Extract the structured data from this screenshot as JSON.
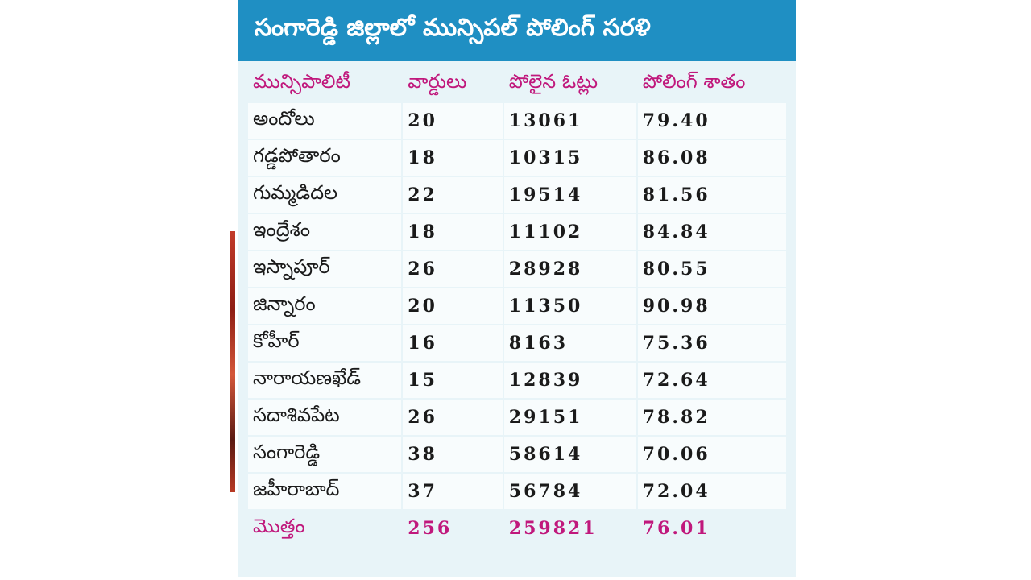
{
  "title": "సంగారెడ్డి జిల్లాలో మున్సిపల్ పోలింగ్ సరళి",
  "headers": [
    "మున్సిపాలిటీ",
    "వార్డులు",
    "పోలైన ఓట్లు",
    "పోలింగ్ శాతం"
  ],
  "rows": [
    {
      "name": "అందోలు",
      "wards": "20",
      "votes": "13061",
      "percent": "79.40"
    },
    {
      "name": "గడ్డపోతారం",
      "wards": "18",
      "votes": "10315",
      "percent": "86.08"
    },
    {
      "name": "గుమ్మడిదల",
      "wards": "22",
      "votes": "19514",
      "percent": "81.56"
    },
    {
      "name": "ఇంద్రేశం",
      "wards": "18",
      "votes": "11102",
      "percent": "84.84"
    },
    {
      "name": "ఇస్నాపూర్",
      "wards": "26",
      "votes": "28928",
      "percent": "80.55"
    },
    {
      "name": "జిన్నారం",
      "wards": "20",
      "votes": "11350",
      "percent": "90.98"
    },
    {
      "name": "కోహీర్",
      "wards": "16",
      "votes": "8163",
      "percent": "75.36"
    },
    {
      "name": "నారాయణఖేడ్",
      "wards": "15",
      "votes": "12839",
      "percent": "72.64"
    },
    {
      "name": "సదాశివపేట",
      "wards": "26",
      "votes": "29151",
      "percent": "78.82"
    },
    {
      "name": "సంగారెడ్డి",
      "wards": "38",
      "votes": "58614",
      "percent": "70.06"
    },
    {
      "name": "జహీరాబాద్",
      "wards": "37",
      "votes": "56784",
      "percent": "72.04"
    }
  ],
  "total": {
    "name": "మొత్తం",
    "wards": "256",
    "votes": "259821",
    "percent": "76.01"
  },
  "colors": {
    "banner": "#1f8fc3",
    "header_text": "#c0187c",
    "total_text": "#c0187c",
    "background": "#e8f4f8"
  }
}
